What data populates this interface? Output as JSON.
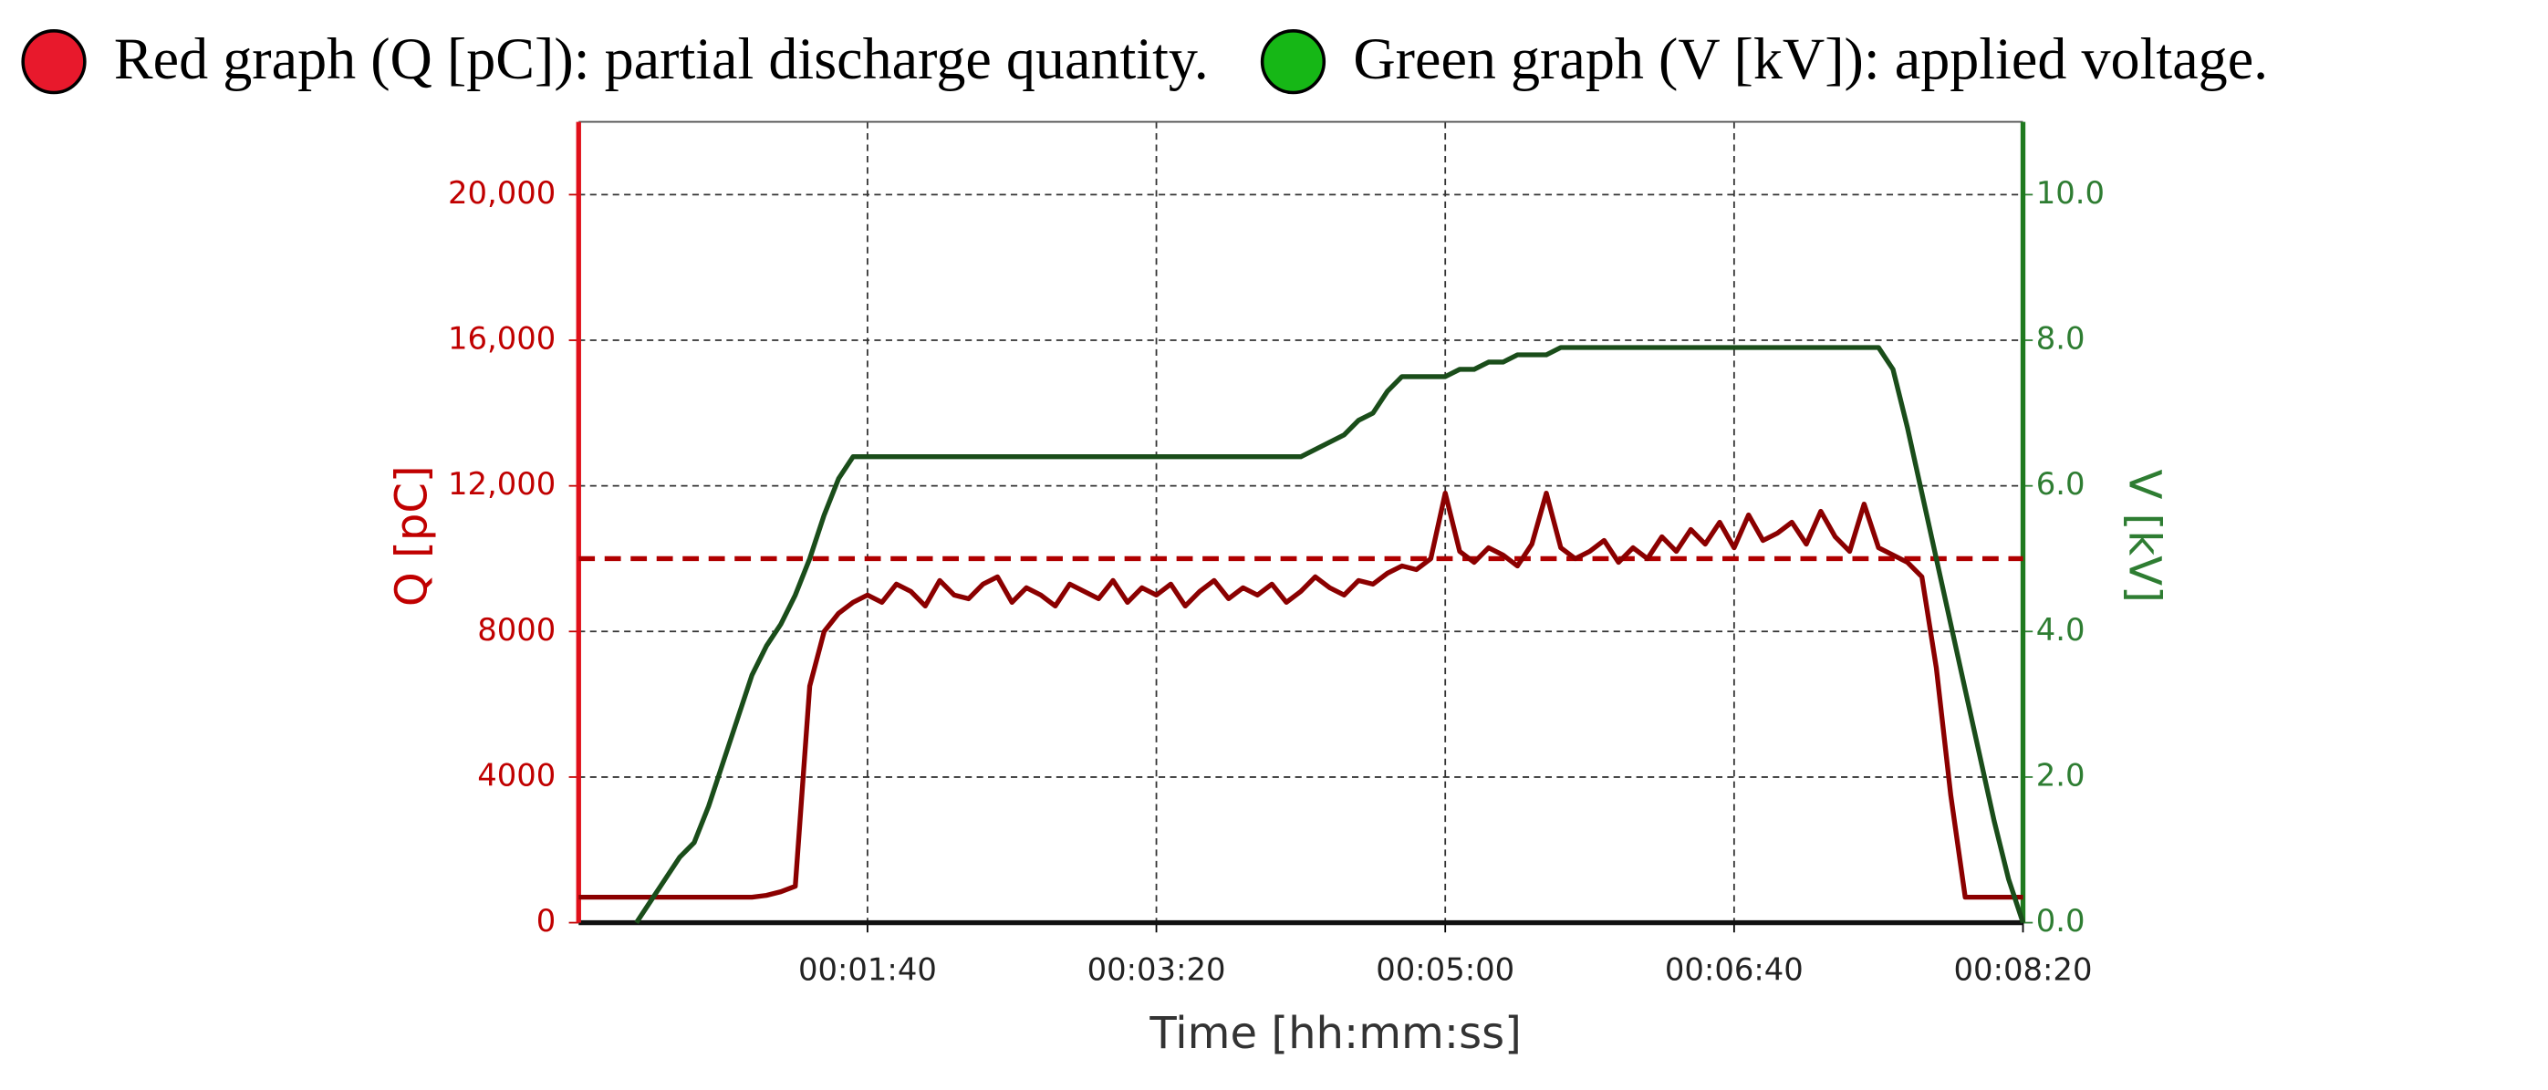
{
  "chart_data": {
    "type": "line",
    "x_label": "Time [hh:mm:ss]",
    "y_label": "Q [pC]",
    "y2_label": "V [kV]",
    "x": [
      0,
      5,
      10,
      15,
      20,
      25,
      30,
      35,
      40,
      45,
      50,
      55,
      60,
      65,
      70,
      75,
      80,
      85,
      90,
      95,
      100,
      105,
      110,
      115,
      120,
      125,
      130,
      135,
      140,
      145,
      150,
      155,
      160,
      165,
      170,
      175,
      180,
      185,
      190,
      195,
      200,
      205,
      210,
      215,
      220,
      225,
      230,
      235,
      240,
      245,
      250,
      255,
      260,
      265,
      270,
      275,
      280,
      285,
      290,
      295,
      300,
      305,
      310,
      315,
      320,
      325,
      330,
      335,
      340,
      345,
      350,
      355,
      360,
      365,
      370,
      375,
      380,
      385,
      390,
      395,
      400,
      405,
      410,
      415,
      420,
      425,
      430,
      435,
      440,
      445,
      450,
      455,
      460,
      465,
      470,
      475,
      480,
      485,
      490,
      495,
      500
    ],
    "xlim": [
      0,
      500
    ],
    "xticks": [
      {
        "value": 100,
        "label": "00:01:40"
      },
      {
        "value": 200,
        "label": "00:03:20"
      },
      {
        "value": 300,
        "label": "00:05:00"
      },
      {
        "value": 400,
        "label": "00:06:40"
      },
      {
        "value": 500,
        "label": "00:08:20"
      }
    ],
    "ylim": [
      0,
      22000
    ],
    "yticks": [
      0,
      4000,
      8000,
      {
        "value": 12000,
        "label": "12,000"
      },
      {
        "value": 16000,
        "label": "16,000"
      },
      {
        "value": 20000,
        "label": "20,000"
      }
    ],
    "y2lim": [
      0,
      11
    ],
    "y2ticks": [
      {
        "value": 0,
        "label": "0.0"
      },
      {
        "value": 2,
        "label": "2.0"
      },
      {
        "value": 4,
        "label": "4.0"
      },
      {
        "value": 6,
        "label": "6.0"
      },
      {
        "value": 8,
        "label": "8.0"
      },
      {
        "value": 10,
        "label": "10.0"
      }
    ],
    "grid": true,
    "reference_line": {
      "value": 10000,
      "color": "#b00000"
    },
    "series": [
      {
        "name": "Red graph (Q [pC]): partial discharge quantity.",
        "color": "#8b0000",
        "marker_color": "#e8192c",
        "values": [
          700,
          700,
          700,
          700,
          700,
          700,
          700,
          700,
          700,
          700,
          700,
          700,
          700,
          750,
          850,
          1000,
          6500,
          8000,
          8500,
          8800,
          9000,
          8800,
          9300,
          9100,
          8700,
          9400,
          9000,
          8900,
          9300,
          9500,
          8800,
          9200,
          9000,
          8700,
          9300,
          9100,
          8900,
          9400,
          8800,
          9200,
          9000,
          9300,
          8700,
          9100,
          9400,
          8900,
          9200,
          9000,
          9300,
          8800,
          9100,
          9500,
          9200,
          9000,
          9400,
          9300,
          9600,
          9800,
          9700,
          10000,
          11800,
          10200,
          9900,
          10300,
          10100,
          9800,
          10400,
          11800,
          10300,
          10000,
          10200,
          10500,
          9900,
          10300,
          10000,
          10600,
          10200,
          10800,
          10400,
          11000,
          10300,
          11200,
          10500,
          10700,
          11000,
          10400,
          11300,
          10600,
          10200,
          11500,
          10300,
          10100,
          9900,
          9500,
          7000,
          3500,
          700,
          700,
          700,
          700,
          700
        ]
      },
      {
        "name": "Green graph (V [kV]): applied voltage.",
        "color": "#1a4d1a",
        "marker_color": "#16b716",
        "axis": "y2",
        "values": [
          null,
          null,
          null,
          null,
          0.0,
          0.3,
          0.6,
          0.9,
          1.1,
          1.6,
          2.2,
          2.8,
          3.4,
          3.8,
          4.1,
          4.5,
          5.0,
          5.6,
          6.1,
          6.4,
          6.4,
          6.4,
          6.4,
          6.4,
          6.4,
          6.4,
          6.4,
          6.4,
          6.4,
          6.4,
          6.4,
          6.4,
          6.4,
          6.4,
          6.4,
          6.4,
          6.4,
          6.4,
          6.4,
          6.4,
          6.4,
          6.4,
          6.4,
          6.4,
          6.4,
          6.4,
          6.4,
          6.4,
          6.4,
          6.4,
          6.4,
          6.5,
          6.6,
          6.7,
          6.9,
          7.0,
          7.3,
          7.5,
          7.5,
          7.5,
          7.5,
          7.6,
          7.6,
          7.7,
          7.7,
          7.8,
          7.8,
          7.8,
          7.9,
          7.9,
          7.9,
          7.9,
          7.9,
          7.9,
          7.9,
          7.9,
          7.9,
          7.9,
          7.9,
          7.9,
          7.9,
          7.9,
          7.9,
          7.9,
          7.9,
          7.9,
          7.9,
          7.9,
          7.9,
          7.9,
          7.9,
          7.6,
          6.8,
          5.9,
          5.0,
          4.1,
          3.2,
          2.3,
          1.4,
          0.6,
          0.0
        ]
      }
    ]
  }
}
